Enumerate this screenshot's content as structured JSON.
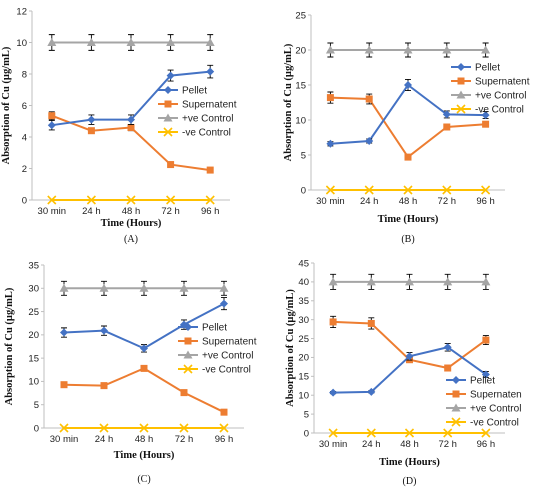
{
  "chart_data": [
    {
      "type": "line",
      "caption": "(A)",
      "categories": [
        "30 min",
        "24 h",
        "48 h",
        "72 h",
        "96 h"
      ],
      "xlabel": "Time (Hours)",
      "ylabel": "Absorption of Cu (µg/mL)",
      "ylim": [
        0,
        12
      ],
      "yticks": [
        0,
        2,
        4,
        6,
        8,
        10,
        12
      ],
      "legend_position": "right-middle",
      "series": [
        {
          "name": "Pellet",
          "color": "#4472C4",
          "marker": "diamond",
          "values": [
            4.75,
            5.1,
            5.1,
            7.9,
            8.15
          ],
          "err": [
            0.3,
            0.3,
            0.3,
            0.35,
            0.4
          ]
        },
        {
          "name": "Supernatent",
          "color": "#ED7D31",
          "marker": "square",
          "values": [
            5.35,
            4.4,
            4.6,
            2.25,
            1.9
          ],
          "err": [
            0.25,
            0.15,
            0.2,
            0.1,
            0.1
          ]
        },
        {
          "name": "+ve Control",
          "color": "#A5A5A5",
          "marker": "triangle",
          "values": [
            10,
            10,
            10,
            10,
            10
          ],
          "err": [
            0.5,
            0.5,
            0.5,
            0.5,
            0.5
          ]
        },
        {
          "name": "-ve Control",
          "color": "#FFC000",
          "marker": "x",
          "values": [
            0,
            0,
            0,
            0,
            0
          ],
          "err": [
            0,
            0,
            0,
            0,
            0
          ]
        }
      ]
    },
    {
      "type": "line",
      "caption": "(B)",
      "categories": [
        "30 min",
        "24 h",
        "48 h",
        "72 h",
        "96 h"
      ],
      "xlabel": "Time (Hours)",
      "ylabel": "Absorption of Cu (µg/mL)",
      "ylim": [
        0,
        25
      ],
      "yticks": [
        0,
        5,
        10,
        15,
        20,
        25
      ],
      "legend_position": "right-middle",
      "series": [
        {
          "name": "Pellet",
          "color": "#4472C4",
          "marker": "diamond",
          "values": [
            6.6,
            7.0,
            15.0,
            10.8,
            10.7
          ],
          "err": [
            0.3,
            0.3,
            0.8,
            0.5,
            0.5
          ]
        },
        {
          "name": "Supernatent",
          "color": "#ED7D31",
          "marker": "square",
          "values": [
            13.2,
            13.0,
            4.7,
            9.0,
            9.4
          ],
          "err": [
            0.8,
            0.7,
            0.3,
            0.3,
            0.3
          ]
        },
        {
          "name": "+ve Control",
          "color": "#A5A5A5",
          "marker": "triangle",
          "values": [
            20,
            20,
            20,
            20,
            20
          ],
          "err": [
            1.0,
            1.0,
            1.0,
            1.0,
            1.0
          ]
        },
        {
          "name": "-ve Control",
          "color": "#FFC000",
          "marker": "x",
          "values": [
            0,
            0,
            0,
            0,
            0
          ],
          "err": [
            0,
            0,
            0,
            0,
            0
          ]
        }
      ]
    },
    {
      "type": "line",
      "caption": "(C)",
      "categories": [
        "30 min",
        "24 h",
        "48 h",
        "72 h",
        "96 h"
      ],
      "xlabel": "Time (Hours)",
      "ylabel": "Absorption of Cu (µg/mL)",
      "ylim": [
        0,
        35
      ],
      "yticks": [
        0,
        5,
        10,
        15,
        20,
        25,
        30,
        35
      ],
      "legend_position": "right-middle",
      "series": [
        {
          "name": "Pellet",
          "color": "#4472C4",
          "marker": "diamond",
          "values": [
            20.5,
            20.9,
            17.1,
            22.2,
            26.7
          ],
          "err": [
            1.0,
            1.0,
            0.8,
            1.0,
            1.3
          ]
        },
        {
          "name": "Supernatent",
          "color": "#ED7D31",
          "marker": "square",
          "values": [
            9.3,
            9.1,
            12.8,
            7.6,
            3.4
          ],
          "err": [
            0.3,
            0.3,
            0.3,
            0.3,
            0.3
          ]
        },
        {
          "name": "+ve Control",
          "color": "#A5A5A5",
          "marker": "triangle",
          "values": [
            30,
            30,
            30,
            30,
            30
          ],
          "err": [
            1.5,
            1.5,
            1.5,
            1.5,
            1.5
          ]
        },
        {
          "name": "-ve Control",
          "color": "#FFC000",
          "marker": "x",
          "values": [
            0,
            0,
            0,
            0,
            0
          ],
          "err": [
            0,
            0,
            0,
            0,
            0
          ]
        }
      ]
    },
    {
      "type": "line",
      "caption": "(D)",
      "categories": [
        "30 min",
        "24 h",
        "48 h",
        "72 h",
        "96 h"
      ],
      "xlabel": "Time (Hours)",
      "ylabel": "Absorption of Cu (µg/mL)",
      "ylim": [
        0,
        45
      ],
      "yticks": [
        0,
        5,
        10,
        15,
        20,
        25,
        30,
        35,
        40,
        45
      ],
      "legend_position": "bottom-right",
      "series": [
        {
          "name": "Pellet",
          "color": "#4472C4",
          "marker": "diamond",
          "values": [
            10.7,
            10.9,
            20.3,
            22.7,
            15.5
          ],
          "err": [
            0.3,
            0.3,
            1.0,
            1.0,
            0.8
          ]
        },
        {
          "name": "Supernaten",
          "color": "#ED7D31",
          "marker": "square",
          "values": [
            29.4,
            29.0,
            19.4,
            17.2,
            24.6
          ],
          "err": [
            1.5,
            1.5,
            0.5,
            0.5,
            1.2
          ]
        },
        {
          "name": "+ve Control",
          "color": "#A5A5A5",
          "marker": "triangle",
          "values": [
            40,
            40,
            40,
            40,
            40
          ],
          "err": [
            2.0,
            2.0,
            2.0,
            2.0,
            2.0
          ]
        },
        {
          "name": "-ve Control",
          "color": "#FFC000",
          "marker": "x",
          "values": [
            0,
            0,
            0,
            0,
            0
          ],
          "err": [
            0,
            0,
            0,
            0,
            0
          ]
        }
      ]
    }
  ]
}
